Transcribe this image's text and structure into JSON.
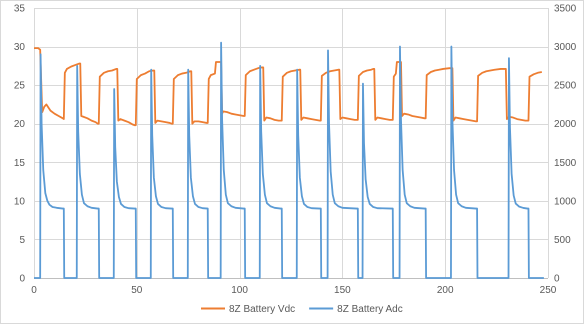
{
  "chart_data": {
    "type": "line",
    "title": "",
    "xlabel": "",
    "ylabel": "",
    "x_range": [
      0,
      250
    ],
    "x_ticks": [
      0,
      50,
      100,
      150,
      200,
      250
    ],
    "y_left_range": [
      0,
      35
    ],
    "y_left_ticks": [
      0,
      5,
      10,
      15,
      20,
      25,
      30,
      35
    ],
    "y_right_range": [
      0,
      3500
    ],
    "y_right_ticks": [
      0,
      500,
      1000,
      1500,
      2000,
      2500,
      3000,
      3500
    ],
    "grid": true,
    "legend_position": "bottom",
    "series": [
      {
        "name": "8Z Battery Vdc",
        "axis": "left",
        "color": "#ED7D31",
        "points": [
          [
            0,
            29.8
          ],
          [
            2,
            29.8
          ],
          [
            3,
            29.6
          ],
          [
            4,
            21.5
          ],
          [
            5,
            22.2
          ],
          [
            6,
            22.5
          ],
          [
            7,
            22.1
          ],
          [
            8,
            21.7
          ],
          [
            10,
            21.3
          ],
          [
            12,
            21.0
          ],
          [
            14,
            20.7
          ],
          [
            14.5,
            20.6
          ],
          [
            15,
            26.6
          ],
          [
            16,
            27.1
          ],
          [
            18,
            27.4
          ],
          [
            20,
            27.6
          ],
          [
            22,
            27.8
          ],
          [
            22.5,
            27.8
          ],
          [
            23,
            21.0
          ],
          [
            24,
            20.9
          ],
          [
            26,
            20.7
          ],
          [
            28,
            20.4
          ],
          [
            30,
            20.2
          ],
          [
            31,
            20.0
          ],
          [
            31.5,
            20.0
          ],
          [
            32,
            26.1
          ],
          [
            34,
            26.6
          ],
          [
            36,
            26.8
          ],
          [
            38,
            26.9
          ],
          [
            40,
            27.1
          ],
          [
            40.5,
            27.1
          ],
          [
            41,
            20.4
          ],
          [
            42,
            20.6
          ],
          [
            44,
            20.4
          ],
          [
            46,
            20.2
          ],
          [
            48,
            19.9
          ],
          [
            49,
            19.8
          ],
          [
            49.5,
            19.8
          ],
          [
            50,
            25.8
          ],
          [
            52,
            26.3
          ],
          [
            54,
            26.5
          ],
          [
            56,
            26.8
          ],
          [
            58,
            26.9
          ],
          [
            58.5,
            26.9
          ],
          [
            59,
            20.1
          ],
          [
            60,
            20.4
          ],
          [
            62,
            20.3
          ],
          [
            64,
            20.2
          ],
          [
            66,
            20.1
          ],
          [
            67,
            20.0
          ],
          [
            67.5,
            20.0
          ],
          [
            68,
            25.8
          ],
          [
            70,
            26.3
          ],
          [
            72,
            26.5
          ],
          [
            74,
            26.6
          ],
          [
            76,
            26.8
          ],
          [
            76.5,
            26.8
          ],
          [
            77,
            20.0
          ],
          [
            78,
            20.3
          ],
          [
            80,
            20.3
          ],
          [
            82,
            20.2
          ],
          [
            84,
            20.1
          ],
          [
            84.5,
            20.1
          ],
          [
            85,
            25.8
          ],
          [
            86,
            26.3
          ],
          [
            88,
            26.5
          ],
          [
            88.5,
            28.0
          ],
          [
            91,
            28.0
          ],
          [
            91.5,
            21.3
          ],
          [
            92,
            21.6
          ],
          [
            94,
            21.5
          ],
          [
            96,
            21.3
          ],
          [
            98,
            21.2
          ],
          [
            102,
            21.0
          ],
          [
            102.5,
            21.0
          ],
          [
            103,
            26.3
          ],
          [
            105,
            26.8
          ],
          [
            107,
            27.0
          ],
          [
            109,
            27.2
          ],
          [
            111,
            27.3
          ],
          [
            111.5,
            27.3
          ],
          [
            112,
            20.4
          ],
          [
            113,
            20.8
          ],
          [
            115,
            20.7
          ],
          [
            117,
            20.5
          ],
          [
            119,
            20.4
          ],
          [
            120,
            20.4
          ],
          [
            120.5,
            20.4
          ],
          [
            121,
            26.1
          ],
          [
            123,
            26.6
          ],
          [
            125,
            26.8
          ],
          [
            127,
            26.9
          ],
          [
            129,
            27.0
          ],
          [
            129.5,
            27.0
          ],
          [
            130,
            20.5
          ],
          [
            131,
            20.8
          ],
          [
            133,
            20.7
          ],
          [
            135,
            20.6
          ],
          [
            137,
            20.5
          ],
          [
            139,
            20.4
          ],
          [
            139.5,
            20.4
          ],
          [
            140,
            26.2
          ],
          [
            142,
            26.6
          ],
          [
            144,
            26.8
          ],
          [
            146,
            26.9
          ],
          [
            148,
            27.0
          ],
          [
            148.5,
            27.0
          ],
          [
            149,
            20.6
          ],
          [
            150,
            20.8
          ],
          [
            152,
            20.7
          ],
          [
            154,
            20.6
          ],
          [
            156,
            20.5
          ],
          [
            157,
            20.5
          ],
          [
            157.5,
            20.5
          ],
          [
            158,
            26.2
          ],
          [
            160,
            26.7
          ],
          [
            162,
            26.9
          ],
          [
            164,
            27.0
          ],
          [
            165,
            27.1
          ],
          [
            165.5,
            27.1
          ],
          [
            166,
            20.5
          ],
          [
            167,
            20.8
          ],
          [
            169,
            20.7
          ],
          [
            171,
            20.6
          ],
          [
            173,
            20.5
          ],
          [
            174,
            20.5
          ],
          [
            174.5,
            20.5
          ],
          [
            175,
            26.1
          ],
          [
            176,
            26.5
          ],
          [
            176.5,
            28.0
          ],
          [
            178.5,
            28.0
          ],
          [
            179,
            21.0
          ],
          [
            180,
            21.3
          ],
          [
            182,
            21.2
          ],
          [
            184,
            21.0
          ],
          [
            186,
            20.9
          ],
          [
            188,
            20.8
          ],
          [
            190,
            20.7
          ],
          [
            190.5,
            20.7
          ],
          [
            191,
            26.3
          ],
          [
            193,
            26.7
          ],
          [
            195,
            26.9
          ],
          [
            197,
            27.0
          ],
          [
            199,
            27.1
          ],
          [
            202,
            27.2
          ],
          [
            203,
            27.2
          ],
          [
            203.5,
            27.2
          ],
          [
            204,
            20.4
          ],
          [
            205,
            20.8
          ],
          [
            207,
            20.7
          ],
          [
            209,
            20.6
          ],
          [
            211,
            20.5
          ],
          [
            213,
            20.4
          ],
          [
            215,
            20.3
          ],
          [
            215.5,
            20.3
          ],
          [
            216,
            26.2
          ],
          [
            218,
            26.6
          ],
          [
            220,
            26.8
          ],
          [
            222,
            26.9
          ],
          [
            224,
            27.0
          ],
          [
            227,
            27.1
          ],
          [
            229,
            27.1
          ],
          [
            229.5,
            27.1
          ],
          [
            230,
            20.6
          ],
          [
            231,
            20.9
          ],
          [
            233,
            20.8
          ],
          [
            235,
            20.6
          ],
          [
            237,
            20.5
          ],
          [
            239,
            20.4
          ],
          [
            240,
            20.4
          ],
          [
            240.5,
            20.4
          ],
          [
            241,
            26.1
          ],
          [
            243,
            26.4
          ],
          [
            245,
            26.6
          ],
          [
            247,
            26.7
          ]
        ]
      },
      {
        "name": "8Z Battery Adc",
        "axis": "right",
        "color": "#5B9BD5",
        "points": [
          [
            0,
            0
          ],
          [
            3,
            0
          ],
          [
            3.2,
            2900
          ],
          [
            3.7,
            2000
          ],
          [
            4.5,
            1400
          ],
          [
            5.5,
            1100
          ],
          [
            6.5,
            1000
          ],
          [
            7.5,
            950
          ],
          [
            9,
            920
          ],
          [
            11,
            910
          ],
          [
            14,
            900
          ],
          [
            14.5,
            900
          ],
          [
            14.7,
            0
          ],
          [
            20.8,
            0
          ],
          [
            21,
            2750
          ],
          [
            21.5,
            1900
          ],
          [
            22.3,
            1350
          ],
          [
            23.3,
            1080
          ],
          [
            24.3,
            970
          ],
          [
            26,
            930
          ],
          [
            28,
            910
          ],
          [
            31,
            900
          ],
          [
            31.5,
            900
          ],
          [
            31.7,
            0
          ],
          [
            38.8,
            0
          ],
          [
            39,
            2450
          ],
          [
            39.5,
            1700
          ],
          [
            40.3,
            1250
          ],
          [
            41.3,
            1050
          ],
          [
            42.3,
            960
          ],
          [
            44,
            920
          ],
          [
            46,
            905
          ],
          [
            49,
            900
          ],
          [
            49.5,
            900
          ],
          [
            49.7,
            0
          ],
          [
            56.8,
            0
          ],
          [
            57,
            2700
          ],
          [
            57.5,
            1850
          ],
          [
            58.3,
            1300
          ],
          [
            59.3,
            1060
          ],
          [
            60.3,
            960
          ],
          [
            62,
            920
          ],
          [
            64,
            905
          ],
          [
            67,
            900
          ],
          [
            67.5,
            900
          ],
          [
            67.7,
            0
          ],
          [
            74.8,
            0
          ],
          [
            75,
            2700
          ],
          [
            75.5,
            1850
          ],
          [
            76.3,
            1300
          ],
          [
            77.3,
            1060
          ],
          [
            78.3,
            960
          ],
          [
            80,
            920
          ],
          [
            82,
            905
          ],
          [
            84.5,
            900
          ],
          [
            84.7,
            0
          ],
          [
            90.8,
            0
          ],
          [
            91,
            3050
          ],
          [
            91.5,
            2050
          ],
          [
            92.3,
            1400
          ],
          [
            93.3,
            1080
          ],
          [
            94.3,
            970
          ],
          [
            96,
            930
          ],
          [
            98,
            910
          ],
          [
            102,
            900
          ],
          [
            102.5,
            900
          ],
          [
            102.7,
            0
          ],
          [
            109.8,
            0
          ],
          [
            110,
            2750
          ],
          [
            110.5,
            1900
          ],
          [
            111.3,
            1350
          ],
          [
            112.3,
            1080
          ],
          [
            113.3,
            970
          ],
          [
            115,
            930
          ],
          [
            117,
            910
          ],
          [
            120,
            900
          ],
          [
            120.5,
            900
          ],
          [
            120.7,
            0
          ],
          [
            127.8,
            0
          ],
          [
            128,
            2700
          ],
          [
            128.5,
            1850
          ],
          [
            129.3,
            1300
          ],
          [
            130.3,
            1060
          ],
          [
            131.3,
            960
          ],
          [
            133,
            920
          ],
          [
            135,
            905
          ],
          [
            139,
            900
          ],
          [
            139.5,
            900
          ],
          [
            139.7,
            0
          ],
          [
            142.8,
            0
          ],
          [
            143,
            2950
          ],
          [
            143.5,
            2000
          ],
          [
            144.3,
            1380
          ],
          [
            145.3,
            1080
          ],
          [
            146.3,
            970
          ],
          [
            148,
            930
          ],
          [
            150,
            910
          ],
          [
            157,
            900
          ],
          [
            157.5,
            900
          ],
          [
            157.7,
            0
          ],
          [
            159.8,
            0
          ],
          [
            160,
            2520
          ],
          [
            160.5,
            1750
          ],
          [
            161.3,
            1280
          ],
          [
            162.3,
            1050
          ],
          [
            163.3,
            960
          ],
          [
            165,
            920
          ],
          [
            167,
            905
          ],
          [
            174,
            900
          ],
          [
            174.5,
            900
          ],
          [
            174.7,
            0
          ],
          [
            177.8,
            0
          ],
          [
            178,
            3000
          ],
          [
            178.5,
            2050
          ],
          [
            179.3,
            1400
          ],
          [
            180.3,
            1080
          ],
          [
            181.3,
            970
          ],
          [
            183,
            930
          ],
          [
            185,
            910
          ],
          [
            190,
            900
          ],
          [
            190.5,
            900
          ],
          [
            190.7,
            0
          ],
          [
            202.8,
            0
          ],
          [
            203,
            3000
          ],
          [
            203.5,
            2050
          ],
          [
            204.3,
            1400
          ],
          [
            205.3,
            1080
          ],
          [
            206.3,
            970
          ],
          [
            208,
            930
          ],
          [
            210,
            910
          ],
          [
            215,
            900
          ],
          [
            215.5,
            900
          ],
          [
            215.7,
            0
          ],
          [
            230.8,
            0
          ],
          [
            231,
            2850
          ],
          [
            231.5,
            1950
          ],
          [
            232.3,
            1350
          ],
          [
            233.3,
            1070
          ],
          [
            234.3,
            965
          ],
          [
            236,
            925
          ],
          [
            238,
            908
          ],
          [
            240,
            900
          ],
          [
            240.5,
            900
          ],
          [
            240.7,
            0
          ],
          [
            248,
            0
          ]
        ]
      }
    ]
  }
}
